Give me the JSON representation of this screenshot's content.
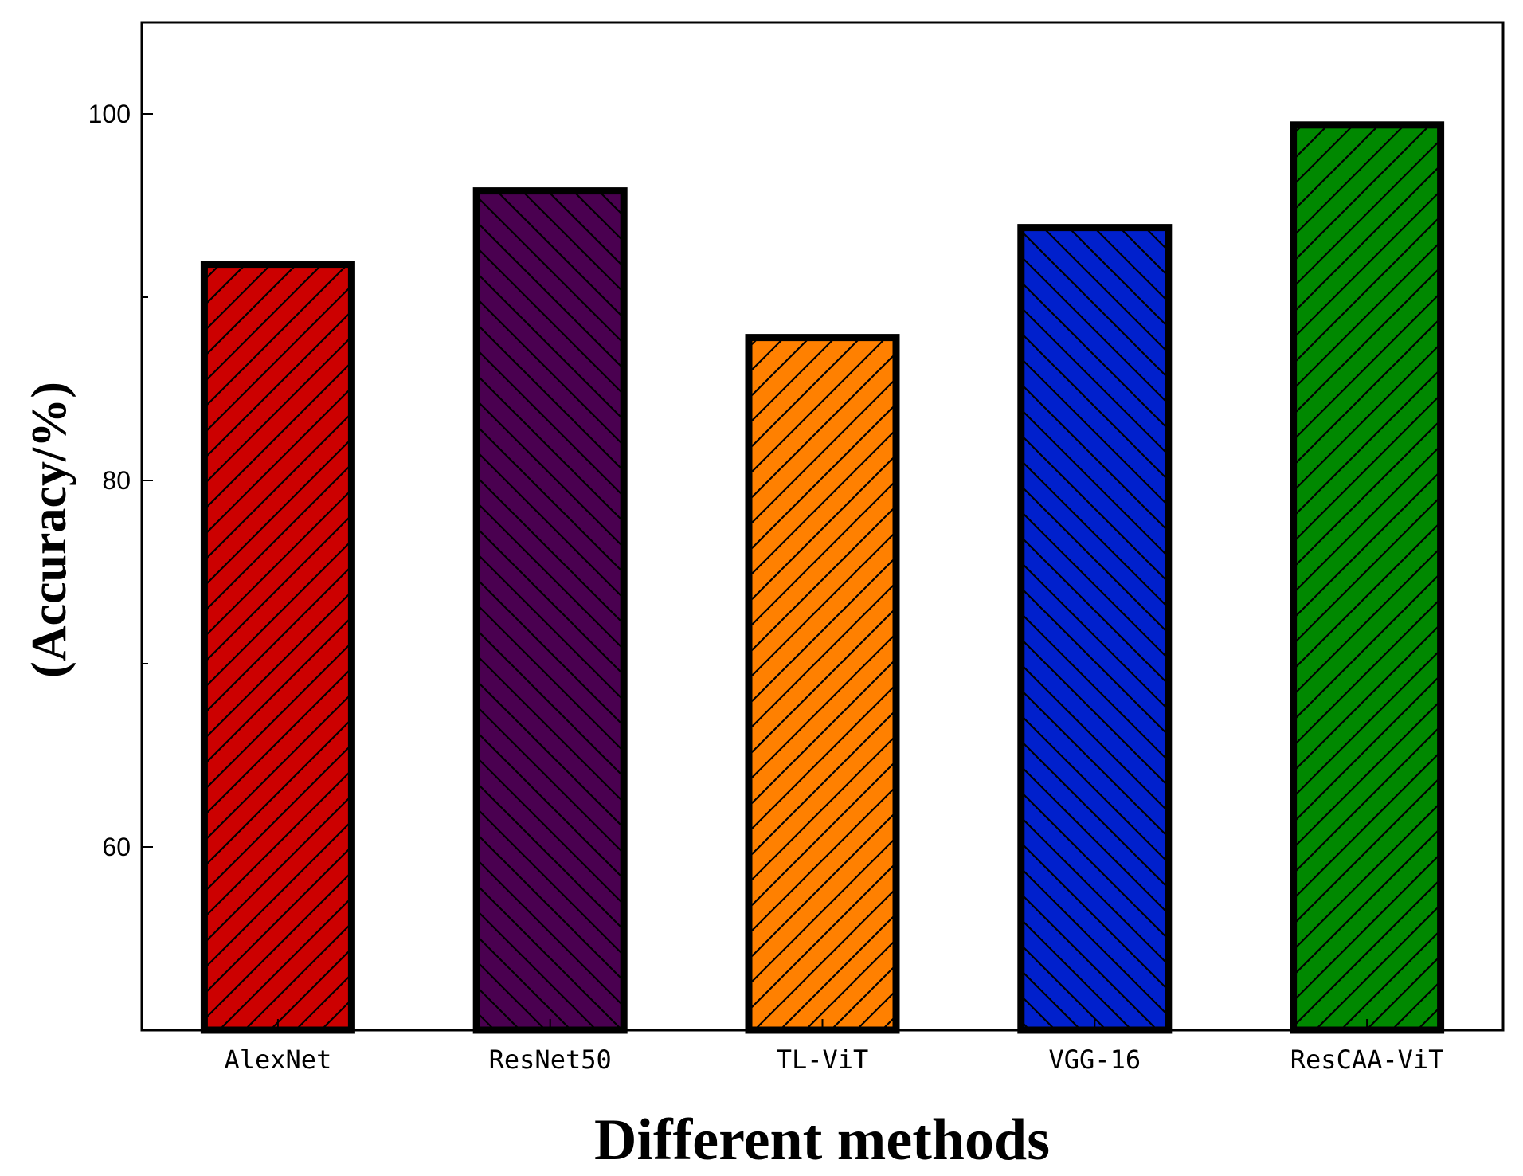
{
  "chart_data": {
    "type": "bar",
    "title": "",
    "xlabel": "Different methods",
    "ylabel": "(Accuracy/%)",
    "categories": [
      "AlexNet",
      "ResNet50",
      "TL-ViT",
      "VGG-16",
      "ResCAA-ViT"
    ],
    "values": [
      91.8,
      95.8,
      87.8,
      93.8,
      99.4
    ],
    "colors": [
      "#cc0000",
      "#4a0050",
      "#ff8000",
      "#0020cc",
      "#008800"
    ],
    "hatch": [
      "forward",
      "backward",
      "forward",
      "backward",
      "forward"
    ],
    "ylim": [
      50,
      105
    ],
    "yticks": [
      60,
      80,
      100
    ],
    "grid": false,
    "legend": "none"
  }
}
